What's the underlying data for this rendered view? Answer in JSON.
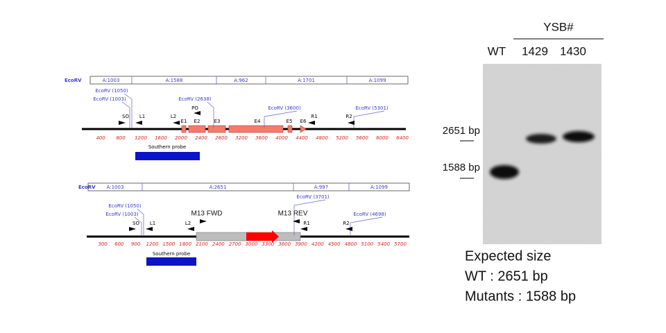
{
  "maps": [
    {
      "enzyme": "EcoRV",
      "fragments": [
        "A:1003",
        "A:1588",
        "A:962",
        "A:1701",
        "A:1099"
      ],
      "sites": [
        "EcoRV (1050)",
        "EcoRV (1003)",
        "EcoRV (2638)",
        "EcoRV (3600)",
        "EcoRV (5301)"
      ],
      "features": [
        "SO",
        "L1",
        "L2",
        "PO",
        "E1",
        "E2",
        "E3",
        "E4",
        "E5",
        "E6",
        "R1",
        "R2"
      ],
      "scale": [
        400,
        800,
        1200,
        1600,
        2000,
        2400,
        2800,
        3200,
        3600,
        4000,
        4400,
        4800,
        5200,
        5600,
        6000,
        6400
      ],
      "probe": "Southern probe"
    },
    {
      "enzyme": "EcoRV",
      "fragments": [
        "A:1003",
        "A:2651",
        "A:997",
        "A:1099"
      ],
      "sites": [
        "EcoRV (1050)",
        "EcoRV (1003)",
        "EcoRV (3701)",
        "EcoRV (4698)"
      ],
      "features": [
        "SO",
        "L1",
        "L2",
        "M13 FWD",
        "M13 REV",
        "R1",
        "R2"
      ],
      "scale": [
        300,
        600,
        900,
        1200,
        1500,
        1800,
        2100,
        2400,
        2700,
        3000,
        3300,
        3600,
        3900,
        4200,
        4500,
        4800,
        5100,
        5400,
        5700
      ],
      "probe": "Southern probe"
    }
  ],
  "blot": {
    "group": "YSB#",
    "lanes": [
      "WT",
      "1429",
      "1430"
    ],
    "markers": [
      "2651 bp",
      "1588 bp"
    ]
  },
  "caption": [
    "Expected size",
    "WT : 2651 bp",
    "Mutants : 1588 bp"
  ]
}
